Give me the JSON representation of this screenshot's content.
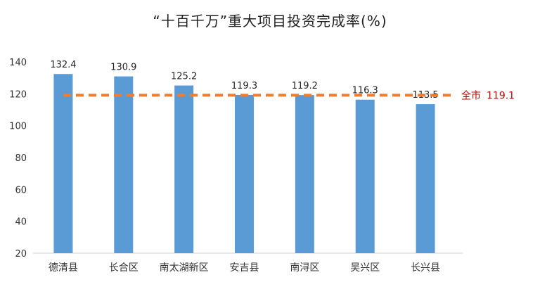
{
  "chart_data": {
    "type": "bar",
    "title": "“十百千万”重大项目投资完成率(%)",
    "categories": [
      "德清县",
      "长合区",
      "南太湖新区",
      "安吉县",
      "南浔区",
      "吴兴区",
      "长兴县"
    ],
    "values": [
      132.4,
      130.9,
      125.2,
      119.3,
      119.2,
      116.3,
      113.5
    ],
    "data_labels": [
      "132.4",
      "130.9",
      "125.2",
      "119.3",
      "119.2",
      "116.3",
      "113.5"
    ],
    "ylim": [
      20,
      140
    ],
    "yticks": [
      20,
      40,
      60,
      80,
      100,
      120,
      140
    ],
    "xlabel": "",
    "ylabel": "",
    "grid": false,
    "reference_line": {
      "label": "全市",
      "value": 119.1,
      "value_text": "119.1",
      "color": "#ED7D31",
      "label_color": "#C00000"
    },
    "bar_color": "#5B9BD5"
  }
}
